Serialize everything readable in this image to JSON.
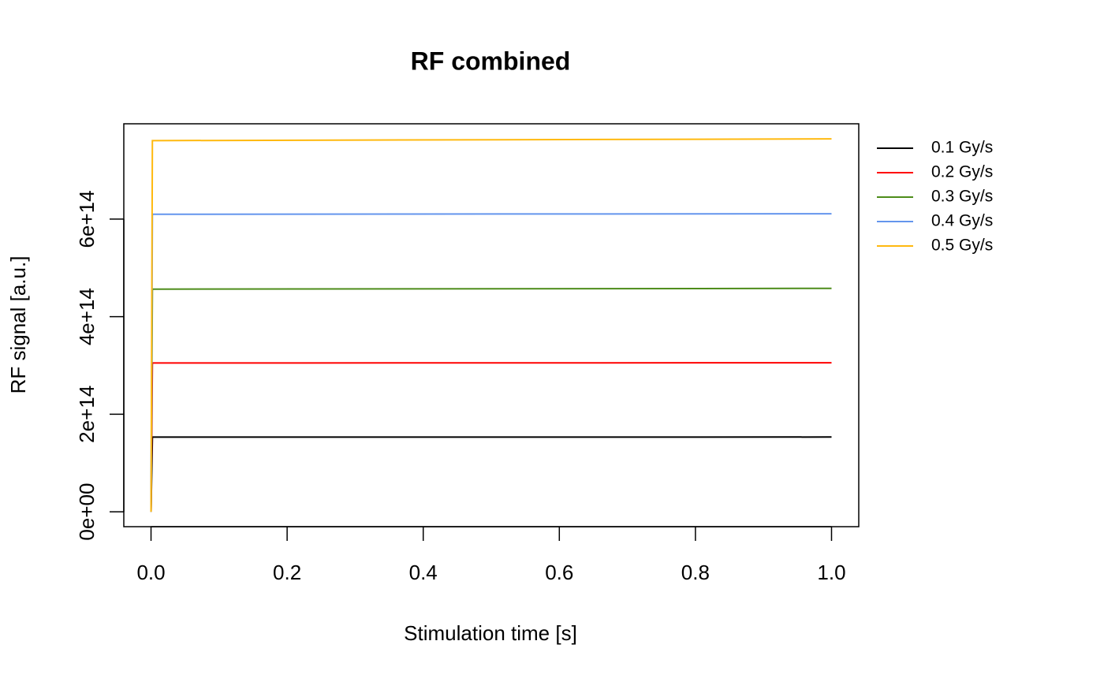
{
  "chart_data": {
    "type": "line",
    "title": "RF combined",
    "x_label": "Stimulation time [s]",
    "y_label": "RF signal [a.u.]",
    "x": [
      0,
      0.002,
      1.0
    ],
    "series": [
      {
        "name": "0.1 Gy/s",
        "color": "#000000",
        "values": [
          0,
          153000000000000,
          153200000000000
        ]
      },
      {
        "name": "0.2 Gy/s",
        "color": "#ff0000",
        "values": [
          0,
          305000000000000,
          305500000000000
        ]
      },
      {
        "name": "0.3 Gy/s",
        "color": "#4d8c1a",
        "values": [
          0,
          456500000000000,
          458000000000000
        ]
      },
      {
        "name": "0.4 Gy/s",
        "color": "#6495ed",
        "values": [
          0,
          610000000000000,
          611000000000000
        ]
      },
      {
        "name": "0.5 Gy/s",
        "color": "#ffb90f",
        "values": [
          0,
          761000000000000,
          764500000000000
        ]
      }
    ],
    "xlim": [
      -0.04,
      1.04
    ],
    "xticks": [
      {
        "value": 0,
        "label": "0.0"
      },
      0.2,
      0.4,
      0.6,
      0.8,
      {
        "value": 1,
        "label": "1.0"
      }
    ],
    "ylim": [
      -30600000000000,
      795500000000000
    ],
    "yticks": [
      {
        "value": 0,
        "label": "0e+00"
      },
      {
        "value": 200000000000000,
        "label": "2e+14"
      },
      {
        "value": 400000000000000,
        "label": "4e+14"
      },
      {
        "value": 600000000000000,
        "label": "6e+14"
      }
    ],
    "grid": false
  }
}
